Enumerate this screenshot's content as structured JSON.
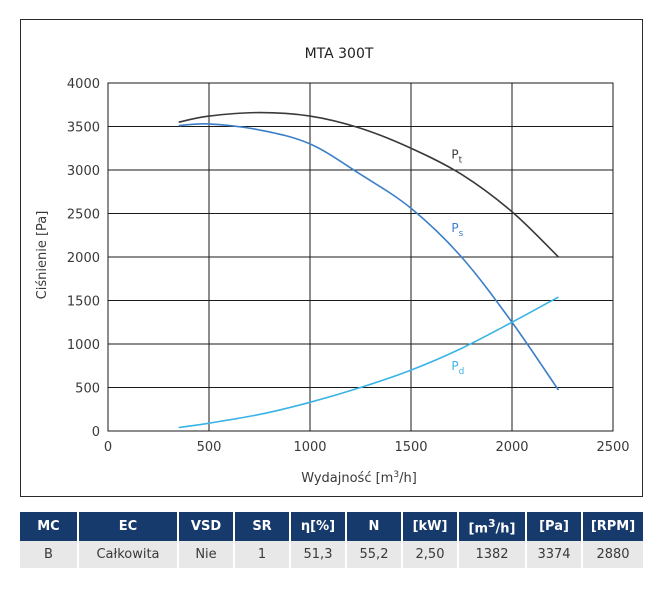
{
  "chart_data": {
    "type": "line",
    "title": "MTA 300T",
    "xlabel": "Wydajność [m³/h]",
    "ylabel": "Ciśnienie [Pa]",
    "xlim": [
      0,
      2500
    ],
    "ylim": [
      0,
      4000
    ],
    "x_ticks": [
      "0",
      "500",
      "1000",
      "1500",
      "2000",
      "2500"
    ],
    "y_ticks": [
      "0",
      "500",
      "1000",
      "1500",
      "2000",
      "2500",
      "3000",
      "3500",
      "4000"
    ],
    "grid": true,
    "series": [
      {
        "name": "Pt",
        "label_main": "P",
        "label_sub": "t",
        "color": "#3a3a3a",
        "x": [
          350,
          500,
          750,
          1000,
          1250,
          1500,
          1750,
          2000,
          2230
        ],
        "y": [
          3550,
          3620,
          3660,
          3620,
          3480,
          3250,
          2950,
          2520,
          2000
        ]
      },
      {
        "name": "Ps",
        "label_main": "P",
        "label_sub": "s",
        "color": "#3a7fc8",
        "x": [
          350,
          500,
          750,
          1000,
          1250,
          1500,
          1750,
          2000,
          2230
        ],
        "y": [
          3510,
          3530,
          3460,
          3300,
          2950,
          2560,
          2000,
          1250,
          470
        ]
      },
      {
        "name": "Pd",
        "label_main": "P",
        "label_sub": "d",
        "color": "#3ab4e6",
        "x": [
          350,
          500,
          750,
          1000,
          1250,
          1500,
          1750,
          2000,
          2230
        ],
        "y": [
          40,
          90,
          190,
          330,
          500,
          700,
          950,
          1250,
          1540
        ]
      }
    ]
  },
  "table": {
    "headers": [
      "MC",
      "EC",
      "VSD",
      "SR",
      "η[%]",
      "N",
      "[kW]",
      "[m³/h]",
      "[Pa]",
      "[RPM]"
    ],
    "row": [
      "B",
      "Całkowita",
      "Nie",
      "1",
      "51,3",
      "55,2",
      "2,50",
      "1382",
      "3374",
      "2880"
    ]
  }
}
